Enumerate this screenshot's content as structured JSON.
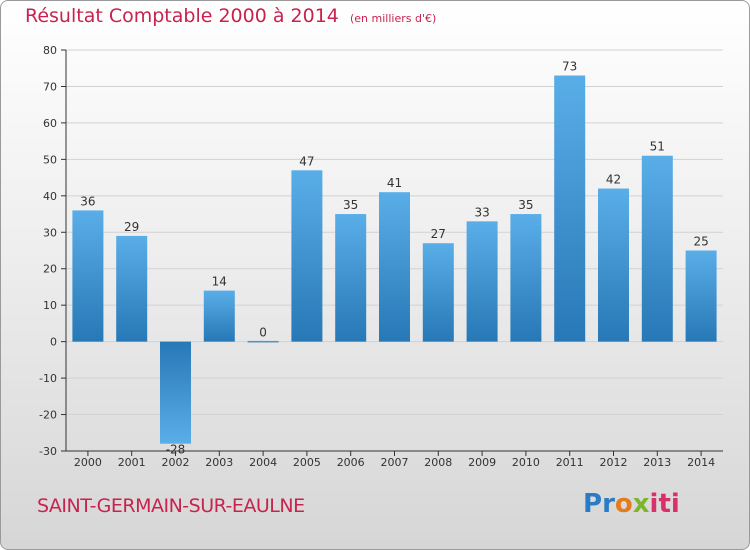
{
  "header": {
    "title": "Résultat Comptable 2000 à 2014",
    "subtitle": "(en milliers d'€)"
  },
  "footer": {
    "place": "SAINT-GERMAIN-SUR-EAULNE",
    "logo": "Proxiti"
  },
  "colors": {
    "title": "#c8234f",
    "bar_light": "#5aaee8",
    "bar_dark": "#2778b6",
    "axis": "#333333",
    "grid": "#d0d0d0"
  },
  "chart_data": {
    "type": "bar",
    "title": "Résultat Comptable 2000 à 2014",
    "subtitle": "(en milliers d'€)",
    "xlabel": "",
    "ylabel": "",
    "categories": [
      "2000",
      "2001",
      "2002",
      "2003",
      "2004",
      "2005",
      "2006",
      "2007",
      "2008",
      "2009",
      "2010",
      "2011",
      "2012",
      "2013",
      "2014"
    ],
    "values": [
      36,
      29,
      -28,
      14,
      0,
      47,
      35,
      41,
      27,
      33,
      35,
      73,
      42,
      51,
      25
    ],
    "labels": [
      "36",
      "29",
      "-28",
      "14",
      "0",
      "47",
      "35",
      "41",
      "27",
      "33",
      "35",
      "73",
      "42",
      "51",
      "25"
    ],
    "ylim": [
      -30,
      80
    ],
    "yticks": [
      -30,
      -20,
      -10,
      0,
      10,
      20,
      30,
      40,
      50,
      60,
      70,
      80
    ],
    "grid": true,
    "legend": "none"
  }
}
